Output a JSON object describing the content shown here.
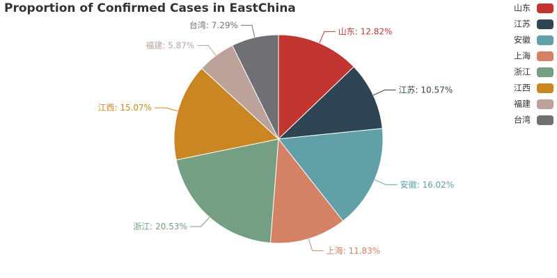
{
  "chart_data": {
    "type": "pie",
    "title": "Proportion of Confirmed Cases in EastChina",
    "start_angle_deg": 90,
    "direction": "clockwise",
    "legend_position": "top-right",
    "label_format": "{name}: {value}%",
    "slices": [
      {
        "name": "山东",
        "value": 12.82,
        "color": "#c23531"
      },
      {
        "name": "江苏",
        "value": 10.57,
        "color": "#2f4554"
      },
      {
        "name": "安徽",
        "value": 16.02,
        "color": "#61a0a8"
      },
      {
        "name": "上海",
        "value": 11.83,
        "color": "#d48265"
      },
      {
        "name": "浙江",
        "value": 20.53,
        "color": "#749f83"
      },
      {
        "name": "江西",
        "value": 15.07,
        "color": "#ca8622"
      },
      {
        "name": "福建",
        "value": 5.87,
        "color": "#bda29a"
      },
      {
        "name": "台湾",
        "value": 7.29,
        "color": "#6e7074"
      }
    ]
  }
}
